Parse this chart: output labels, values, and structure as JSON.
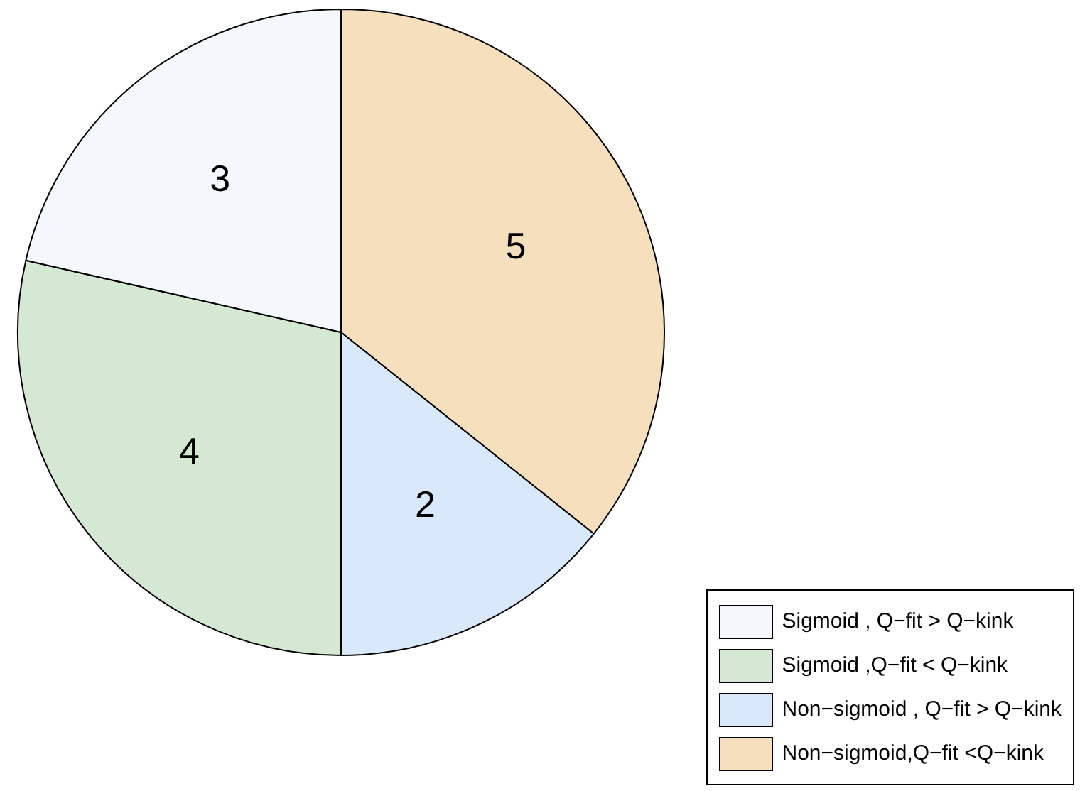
{
  "chart_data": {
    "type": "pie",
    "categories": [
      "Sigmoid , Q−fit > Q−kink",
      "Sigmoid ,Q−fit < Q−kink",
      "Non−sigmoid , Q−fit > Q−kink",
      "Non−sigmoid,Q−fit <Q−kink"
    ],
    "values": [
      3,
      4,
      2,
      5
    ],
    "colors": [
      "#f4f8fd",
      "#d5e8d4",
      "#dae8fc",
      "#f5dfbc"
    ],
    "data_labels": true,
    "legend": "bottom right"
  }
}
